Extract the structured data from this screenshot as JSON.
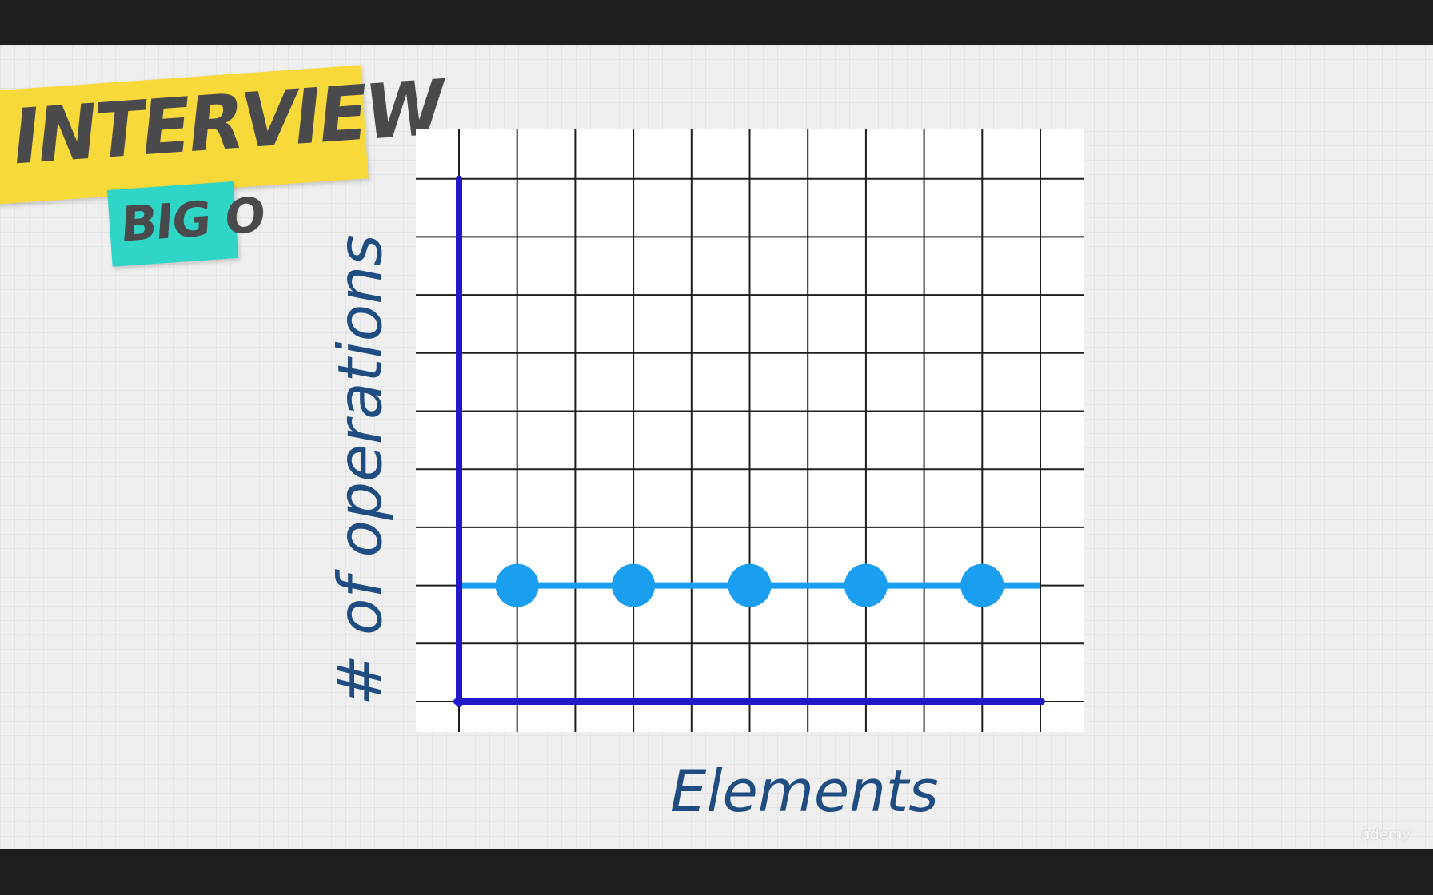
{
  "badge": {
    "title": "INTERVIEW",
    "subtitle": "BIG O",
    "title_color": "#f7d93a",
    "subtitle_color": "#2fd6c8"
  },
  "chart_data": {
    "type": "line",
    "title": "",
    "xlabel": "Elements",
    "ylabel": "# of operations",
    "x": [
      1,
      3,
      5,
      7,
      9
    ],
    "series": [
      {
        "values": [
          2,
          2,
          2,
          2,
          2
        ]
      }
    ],
    "xlim": [
      0,
      10
    ],
    "ylim": [
      0,
      9
    ],
    "grid": true,
    "line_color": "#1a9ff0",
    "axis_color": "#2218c9",
    "grid_color": "#1e1e1e"
  },
  "watermark": "ûdemy"
}
